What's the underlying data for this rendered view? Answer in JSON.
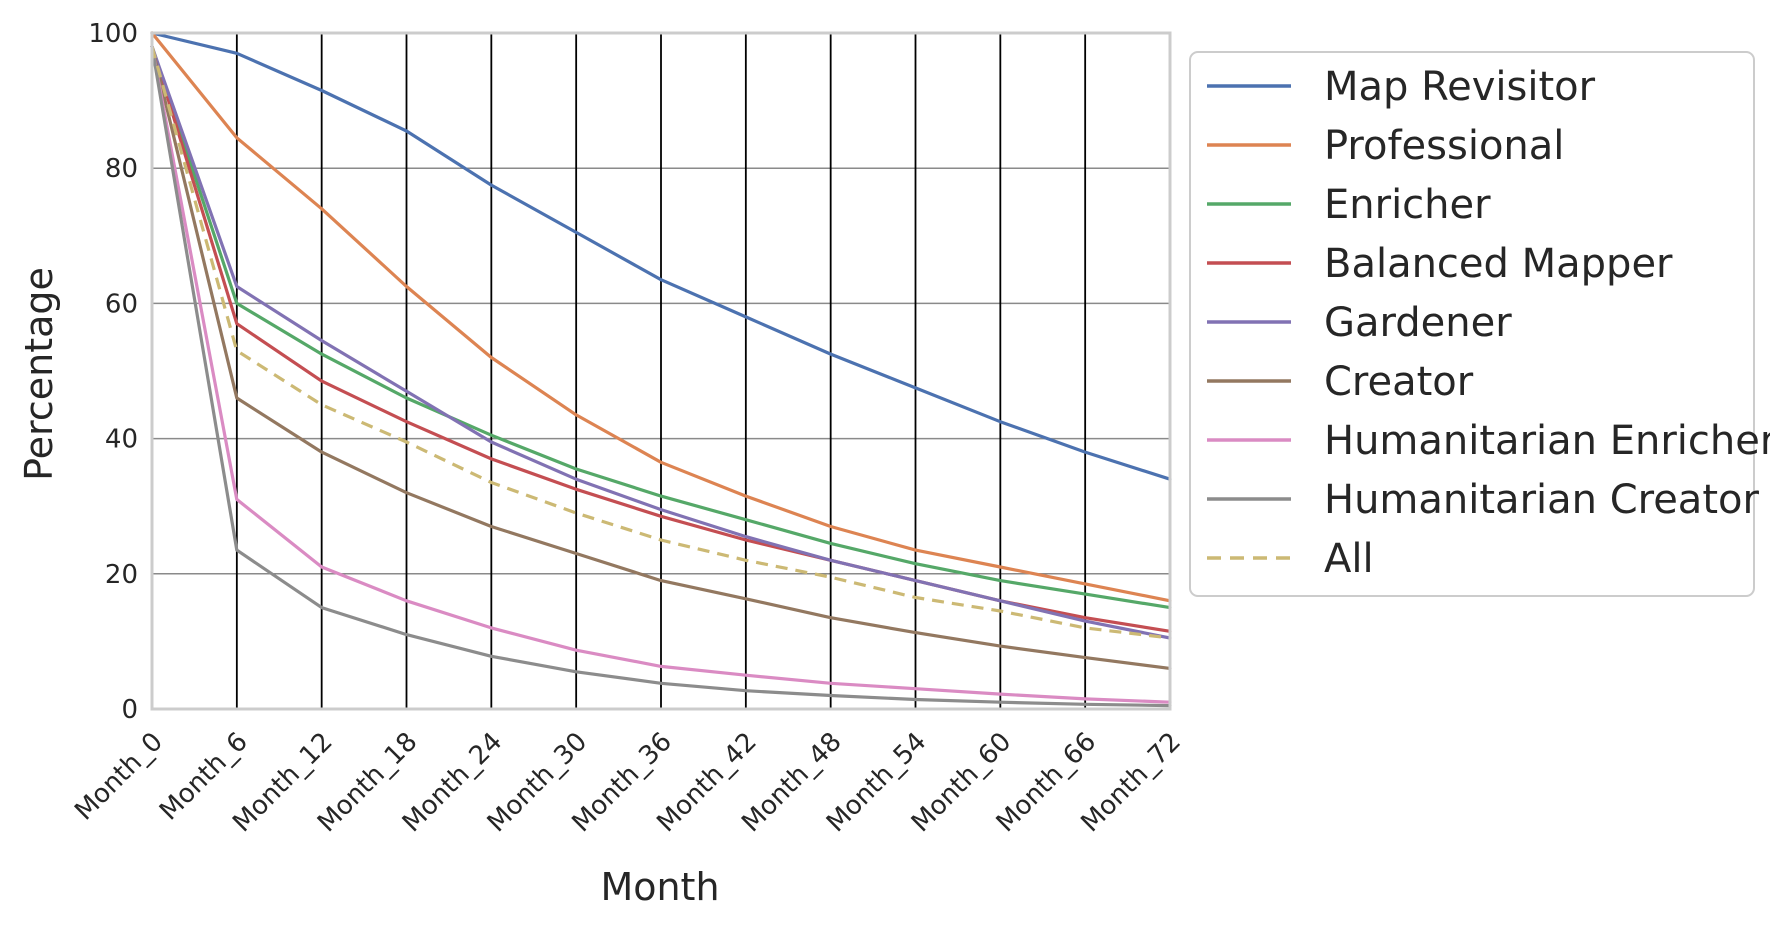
{
  "chart_data": {
    "type": "line",
    "title": "",
    "xlabel": "Month",
    "ylabel": "Percentage",
    "ylim": [
      0,
      100
    ],
    "yticks": [
      "0",
      "20",
      "40",
      "60",
      "80",
      "100"
    ],
    "categories": [
      "Month_0",
      "Month_6",
      "Month_12",
      "Month_18",
      "Month_24",
      "Month_30",
      "Month_36",
      "Month_42",
      "Month_48",
      "Month_54",
      "Month_60",
      "Month_66",
      "Month_72"
    ],
    "grid": "on",
    "legend_position": "outside-right",
    "series": [
      {
        "name": "Map Revisitor",
        "color": "#4c72b0",
        "style": "solid",
        "values": [
          100,
          97,
          91.5,
          85.5,
          77.5,
          70.5,
          63.5,
          58,
          52.5,
          47.5,
          42.5,
          38,
          34
        ]
      },
      {
        "name": "Professional",
        "color": "#dd8452",
        "style": "solid",
        "values": [
          100,
          84.5,
          74,
          62.5,
          52,
          43.5,
          36.5,
          31.5,
          27,
          23.5,
          21,
          18.5,
          16
        ]
      },
      {
        "name": "Enricher",
        "color": "#55a868",
        "style": "solid",
        "values": [
          98,
          60,
          52.5,
          46,
          40.5,
          35.5,
          31.5,
          28,
          24.5,
          21.5,
          19,
          17,
          15
        ]
      },
      {
        "name": "Balanced Mapper",
        "color": "#c44e52",
        "style": "solid",
        "values": [
          98,
          57,
          48.5,
          42.5,
          37,
          32.5,
          28.5,
          25,
          22,
          19,
          16,
          13.5,
          11.5
        ]
      },
      {
        "name": "Gardener",
        "color": "#8172b3",
        "style": "solid",
        "values": [
          98,
          62.5,
          54.5,
          47,
          39.5,
          34,
          29.5,
          25.5,
          22,
          19,
          16,
          13,
          10.5
        ]
      },
      {
        "name": "Creator",
        "color": "#937860",
        "style": "solid",
        "values": [
          98,
          46,
          38,
          32,
          27,
          23,
          19,
          16.3,
          13.5,
          11.3,
          9.3,
          7.6,
          6
        ]
      },
      {
        "name": "Humanitarian Enricher",
        "color": "#da8bc3",
        "style": "solid",
        "values": [
          98,
          31,
          21,
          16,
          12,
          8.7,
          6.3,
          5,
          3.8,
          3,
          2.2,
          1.5,
          1
        ]
      },
      {
        "name": "Humanitarian Creator",
        "color": "#8c8c8c",
        "style": "solid",
        "values": [
          98,
          23.5,
          15,
          11,
          7.8,
          5.5,
          3.8,
          2.7,
          2,
          1.4,
          1,
          0.7,
          0.5
        ]
      },
      {
        "name": "All",
        "color": "#ccb974",
        "style": "dashed",
        "values": [
          98,
          53,
          45,
          39.5,
          33.5,
          29,
          25,
          22,
          19.5,
          16.5,
          14.5,
          12,
          10.5
        ]
      }
    ]
  }
}
